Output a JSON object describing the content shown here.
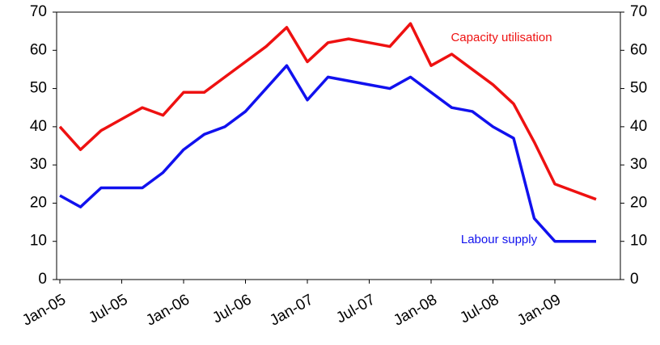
{
  "chart_data": {
    "type": "line",
    "categories": [
      "Jan-05",
      null,
      null,
      "Jul-05",
      null,
      null,
      "Jan-06",
      null,
      null,
      "Jul-06",
      null,
      null,
      "Jan-07",
      null,
      null,
      "Jul-07",
      null,
      null,
      "Jan-08",
      null,
      null,
      "Jul-08",
      null,
      null,
      "Jan-09",
      null,
      null
    ],
    "series": [
      {
        "name": "Capacity utilisation",
        "color": "#ee1111",
        "values": [
          40,
          34,
          39,
          42,
          45,
          43,
          49,
          49,
          53,
          57,
          61,
          66,
          57,
          62,
          63,
          62,
          61,
          67,
          56,
          59,
          55,
          51,
          46,
          36,
          25,
          23,
          21
        ]
      },
      {
        "name": "Labour supply",
        "color": "#1111ee",
        "values": [
          22,
          19,
          24,
          24,
          24,
          28,
          34,
          38,
          40,
          44,
          50,
          56,
          47,
          53,
          52,
          51,
          50,
          53,
          49,
          45,
          44,
          40,
          37,
          16,
          10,
          10,
          10
        ]
      }
    ],
    "ylim": [
      0,
      70
    ],
    "yticks": [
      0,
      10,
      20,
      30,
      40,
      50,
      60,
      70
    ],
    "y2lim": [
      0,
      70
    ],
    "y2ticks": [
      0,
      10,
      20,
      30,
      40,
      50,
      60,
      70
    ]
  }
}
